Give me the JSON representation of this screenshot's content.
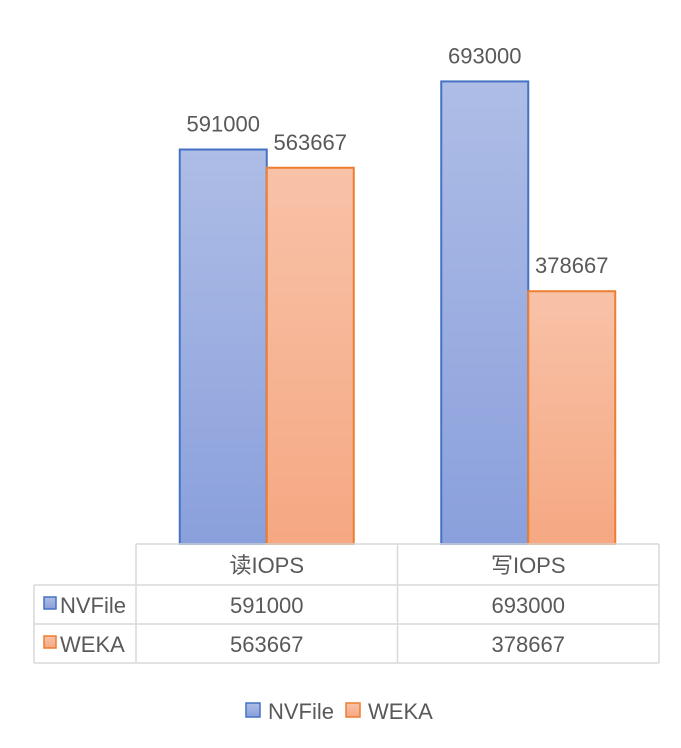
{
  "chart_data": {
    "type": "bar",
    "categories": [
      "读IOPS",
      "写IOPS"
    ],
    "series": [
      {
        "name": "NVFile",
        "values": [
          591000,
          693000
        ],
        "color": "#4472c4",
        "fill_top": "#aebde6",
        "fill_bottom": "#8aa0dc"
      },
      {
        "name": "WEKA",
        "values": [
          563667,
          378667
        ],
        "color": "#ed7d31",
        "fill_top": "#f8c2a8",
        "fill_bottom": "#f5a882"
      }
    ],
    "title": "",
    "xlabel": "",
    "ylabel": "",
    "ylim": [
      0,
      800000
    ],
    "grid": false,
    "data_table": true,
    "legend_position": "bottom",
    "value_labels": [
      [
        "591000",
        "693000"
      ],
      [
        "563667",
        "378667"
      ]
    ]
  }
}
